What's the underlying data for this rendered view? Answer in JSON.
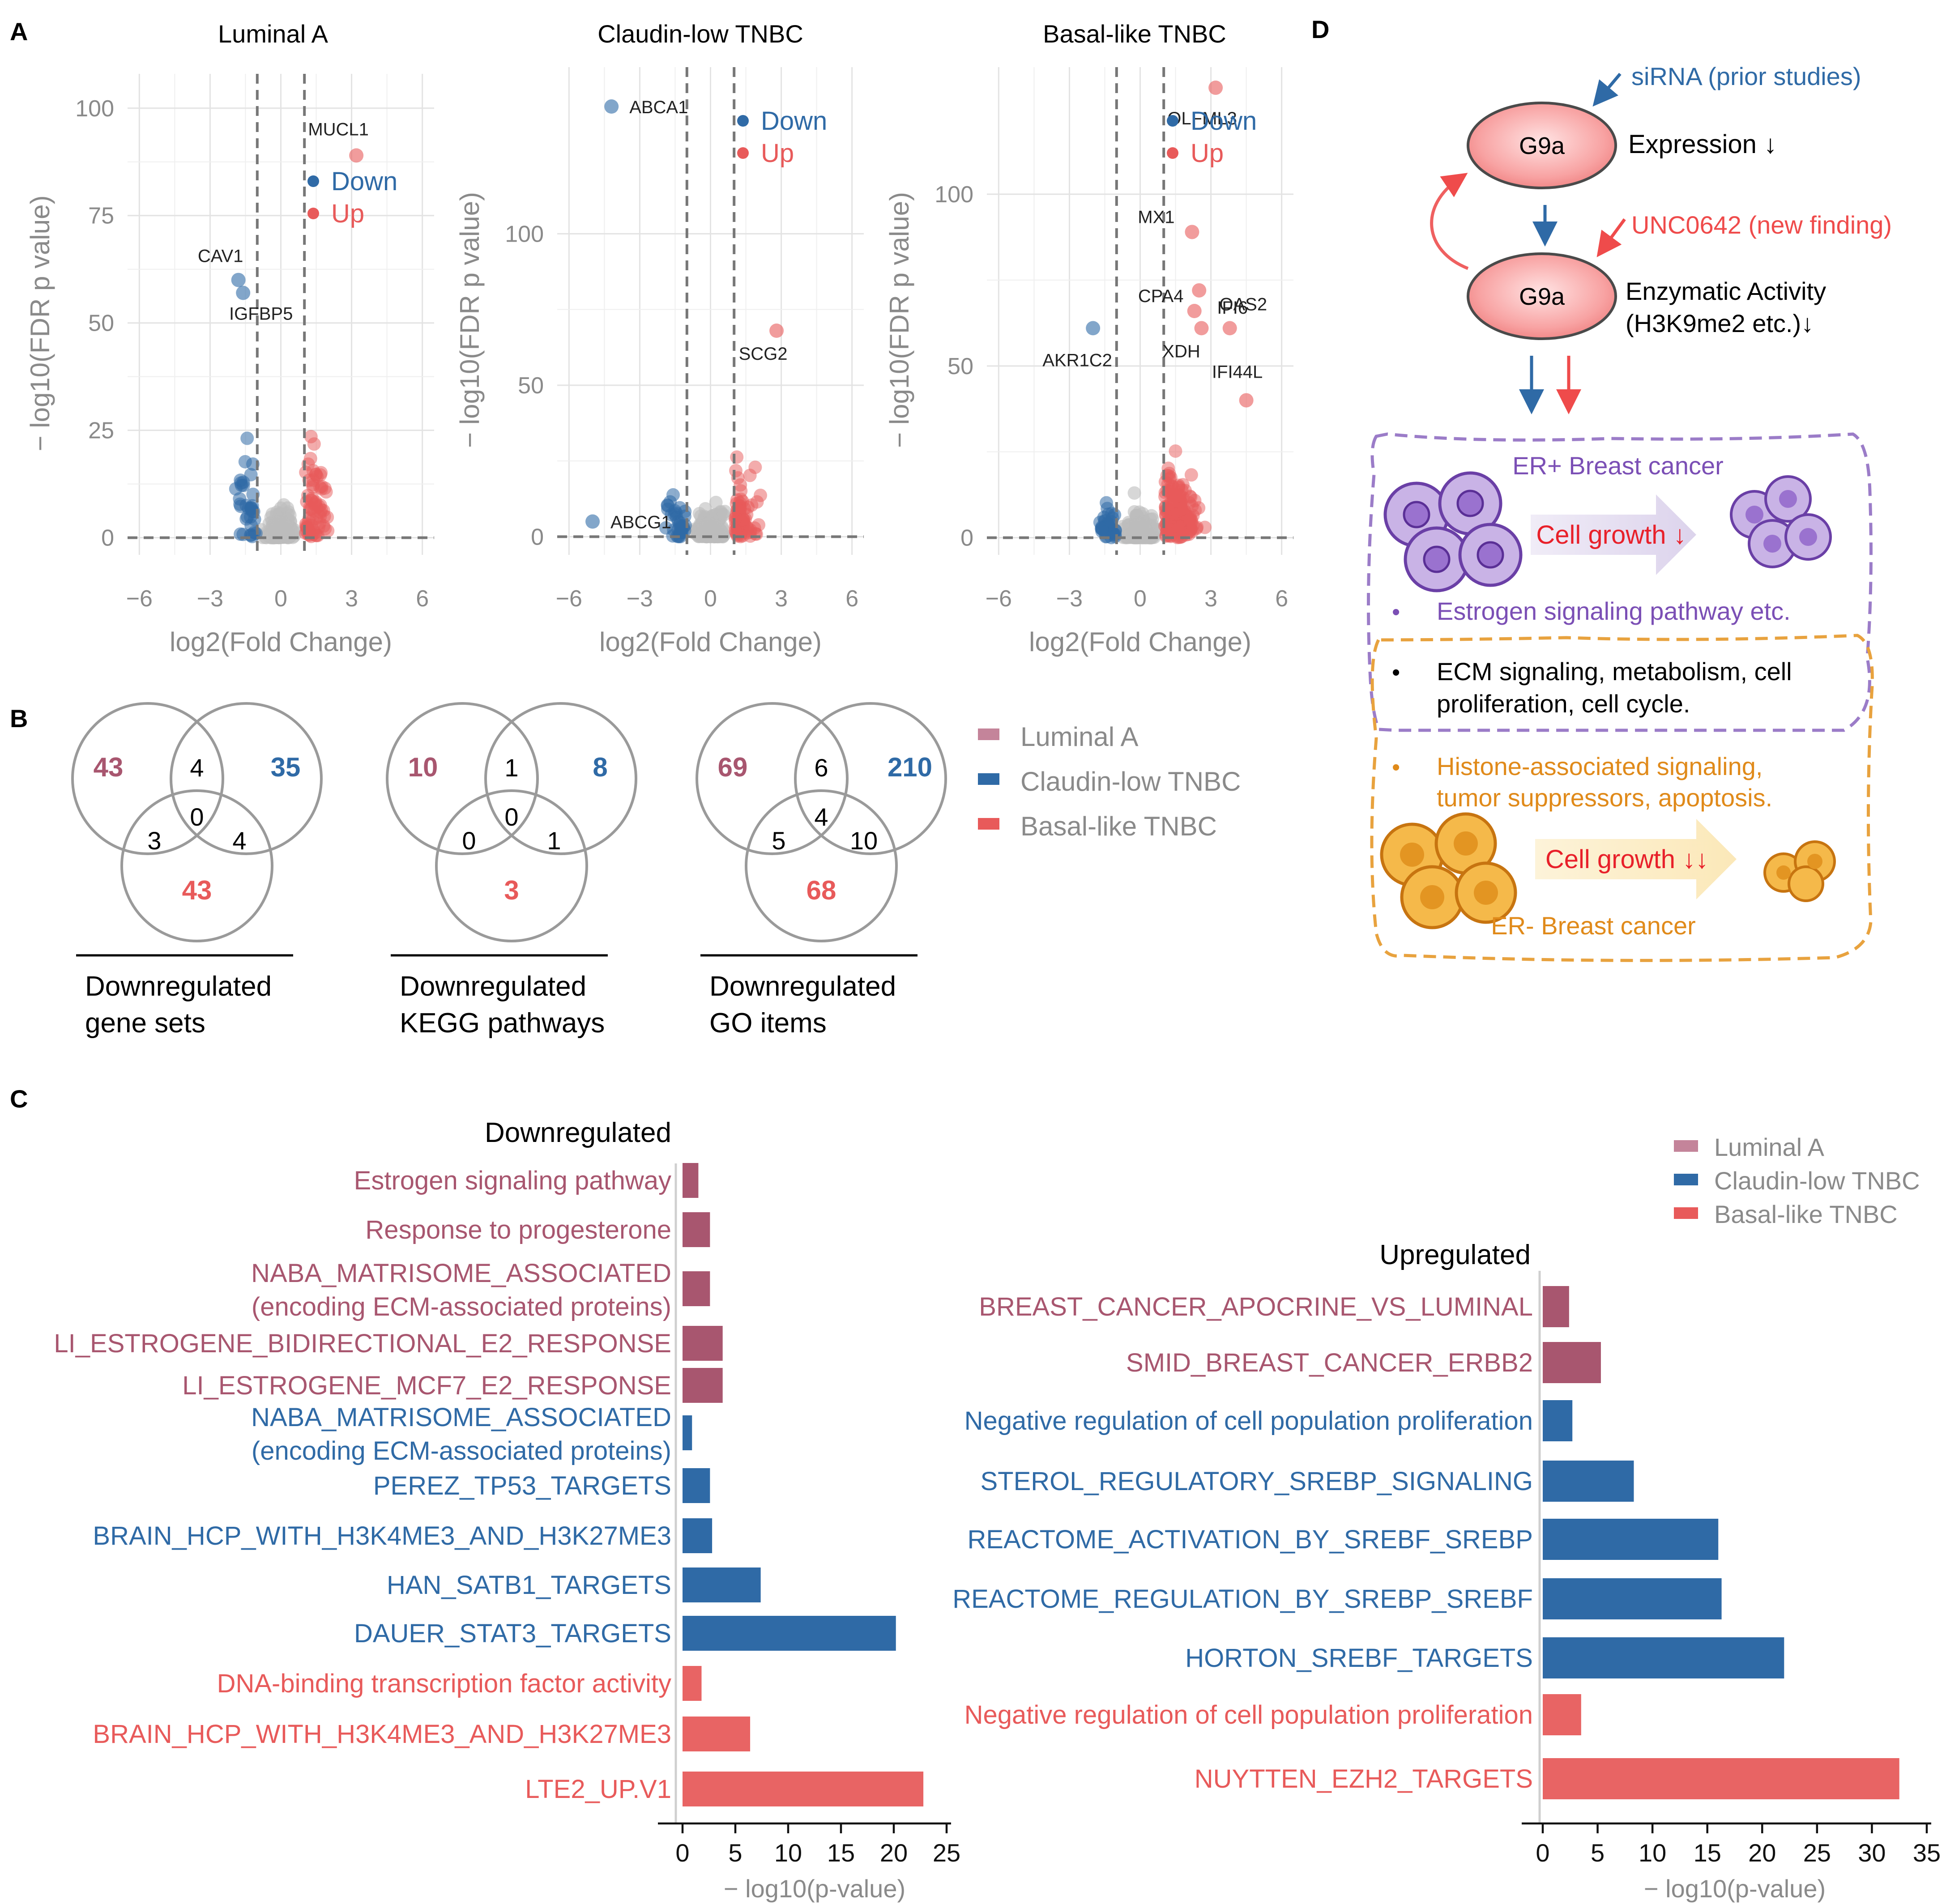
{
  "colors": {
    "luminal": "#a8566f",
    "claudin": "#2f6aa6",
    "basal": "#e85a5a",
    "down": "#2f6aa6",
    "up": "#e85a5a",
    "er_pos": "#7b4fb5",
    "er_neg": "#e08a1a",
    "grey_text": "#8a8a8a"
  },
  "panelA": {
    "label": "A",
    "x_label": "log2(Fold Change)",
    "y_label": "− log10(FDR p value)",
    "legend_down": "Down",
    "legend_up": "Up",
    "x_ticks": [
      "−6",
      "−3",
      "0",
      "3",
      "6"
    ],
    "charts": [
      {
        "type": "scatter",
        "title": "Luminal A",
        "xlim": [
          -6.5,
          6.5
        ],
        "ylim": [
          -4,
          108
        ],
        "y_ticks": [
          0,
          25,
          50,
          75,
          100
        ],
        "thresholds_x": [
          -1,
          1
        ],
        "threshold_y": 0,
        "labeled_points": [
          {
            "gene": "MUCL1",
            "x": 3.2,
            "y": 89,
            "dir": "up"
          },
          {
            "gene": "CAV1",
            "x": -1.8,
            "y": 60,
            "dir": "down"
          },
          {
            "gene": "IGFBP5",
            "x": -1.6,
            "y": 57,
            "dir": "down"
          }
        ]
      },
      {
        "type": "scatter",
        "title": "Claudin-low TNBC",
        "xlim": [
          -6.5,
          6.5
        ],
        "ylim": [
          -6,
          155
        ],
        "y_ticks": [
          0,
          50,
          100
        ],
        "thresholds_x": [
          -1,
          1
        ],
        "threshold_y": 0,
        "labeled_points": [
          {
            "gene": "ABCA1",
            "x": -4.2,
            "y": 142,
            "dir": "down"
          },
          {
            "gene": "SCG2",
            "x": 2.8,
            "y": 68,
            "dir": "up"
          },
          {
            "gene": "ABCG1",
            "x": -5.0,
            "y": 5,
            "dir": "down"
          }
        ]
      },
      {
        "type": "scatter",
        "title": "Basal-like TNBC",
        "xlim": [
          -6.5,
          6.5
        ],
        "ylim": [
          -5,
          137
        ],
        "y_ticks": [
          0,
          50,
          100
        ],
        "thresholds_x": [
          -1,
          1
        ],
        "threshold_y": 0,
        "labeled_points": [
          {
            "gene": "OLFML3",
            "x": 3.2,
            "y": 131,
            "dir": "up"
          },
          {
            "gene": "MX1",
            "x": 2.2,
            "y": 89,
            "dir": "up"
          },
          {
            "gene": "IFI6",
            "x": 2.5,
            "y": 72,
            "dir": "up"
          },
          {
            "gene": "OAS2",
            "x": 3.8,
            "y": 61,
            "dir": "up"
          },
          {
            "gene": "CPA4",
            "x": 2.3,
            "y": 66,
            "dir": "up"
          },
          {
            "gene": "AKR1C2",
            "x": -2.0,
            "y": 61,
            "dir": "down"
          },
          {
            "gene": "XDH",
            "x": 2.6,
            "y": 61,
            "dir": "up"
          },
          {
            "gene": "IFI44L",
            "x": 4.5,
            "y": 40,
            "dir": "up"
          }
        ]
      }
    ]
  },
  "panelB": {
    "label": "B",
    "legend": [
      "Luminal A",
      "Claudin-low TNBC",
      "Basal-like TNBC"
    ],
    "venns": [
      {
        "a": "43",
        "b": "35",
        "c": "43",
        "ab": "4",
        "ac": "3",
        "bc": "4",
        "abc": "0",
        "caption": [
          "Downregulated",
          "gene sets"
        ]
      },
      {
        "a": "10",
        "b": "8",
        "c": "3",
        "ab": "1",
        "ac": "0",
        "bc": "1",
        "abc": "0",
        "caption": [
          "Downregulated",
          "KEGG pathways"
        ]
      },
      {
        "a": "69",
        "b": "210",
        "c": "68",
        "ab": "6",
        "ac": "5",
        "bc": "10",
        "abc": "4",
        "caption": [
          "Downregulated",
          "GO items"
        ]
      }
    ]
  },
  "panelC": {
    "label": "C",
    "legend": [
      "Luminal A",
      "Claudin-low TNBC",
      "Basal-like TNBC"
    ],
    "xlabel": "− log10(p-value)",
    "chart_data": [
      {
        "type": "bar",
        "orientation": "horizontal",
        "title": "Downregulated",
        "xlabel": "− log10(p-value)",
        "xlim": [
          0,
          25
        ],
        "x_ticks": [
          0,
          5,
          10,
          15,
          20,
          25
        ],
        "bars": [
          {
            "label": [
              "Estrogen signaling pathway"
            ],
            "value": 1.5,
            "group": "luminal"
          },
          {
            "label": [
              "Response to progesterone"
            ],
            "value": 2.6,
            "group": "luminal"
          },
          {
            "label": [
              "NABA_MATRISOME_ASSOCIATED",
              "(encoding ECM-associated proteins)"
            ],
            "value": 2.6,
            "group": "luminal"
          },
          {
            "label": [
              "LI_ESTROGENE_BIDIRECTIONAL_E2_RESPONSE"
            ],
            "value": 3.8,
            "group": "luminal"
          },
          {
            "label": [
              "LI_ESTROGENE_MCF7_E2_RESPONSE"
            ],
            "value": 3.8,
            "group": "luminal"
          },
          {
            "label": [
              "NABA_MATRISOME_ASSOCIATED",
              "(encoding ECM-associated proteins)"
            ],
            "value": 0.9,
            "group": "claudin"
          },
          {
            "label": [
              "PEREZ_TP53_TARGETS"
            ],
            "value": 2.6,
            "group": "claudin"
          },
          {
            "label": [
              "BRAIN_HCP_WITH_H3K4ME3_AND_H3K27ME3"
            ],
            "value": 2.8,
            "group": "claudin"
          },
          {
            "label": [
              "HAN_SATB1_TARGETS"
            ],
            "value": 7.4,
            "group": "claudin"
          },
          {
            "label": [
              "DAUER_STAT3_TARGETS"
            ],
            "value": 20.2,
            "group": "claudin"
          },
          {
            "label": [
              "DNA-binding transcription factor activity"
            ],
            "value": 1.8,
            "group": "basal"
          },
          {
            "label": [
              "BRAIN_HCP_WITH_H3K4ME3_AND_H3K27ME3"
            ],
            "value": 6.4,
            "group": "basal"
          },
          {
            "label": [
              "LTE2_UP.V1"
            ],
            "value": 22.8,
            "group": "basal"
          }
        ]
      },
      {
        "type": "bar",
        "orientation": "horizontal",
        "title": "Upregulated",
        "xlabel": "− log10(p-value)",
        "xlim": [
          0,
          35
        ],
        "x_ticks": [
          0,
          5,
          10,
          15,
          20,
          25,
          30,
          35
        ],
        "bars": [
          {
            "label": [
              "BREAST_CANCER_APOCRINE_VS_LUMINAL"
            ],
            "value": 2.4,
            "group": "luminal"
          },
          {
            "label": [
              "SMID_BREAST_CANCER_ERBB2"
            ],
            "value": 5.3,
            "group": "luminal"
          },
          {
            "label": [
              "Negative regulation of cell population proliferation"
            ],
            "value": 2.7,
            "group": "claudin"
          },
          {
            "label": [
              "STEROL_REGULATORY_SREBP_SIGNALING"
            ],
            "value": 8.3,
            "group": "claudin"
          },
          {
            "label": [
              "REACTOME_ACTIVATION_BY_SREBF_SREBP"
            ],
            "value": 16.0,
            "group": "claudin"
          },
          {
            "label": [
              "REACTOME_REGULATION_BY_SREBP_SREBF"
            ],
            "value": 16.3,
            "group": "claudin"
          },
          {
            "label": [
              "HORTON_SREBF_TARGETS"
            ],
            "value": 22.0,
            "group": "claudin"
          },
          {
            "label": [
              "Negative regulation of cell population proliferation"
            ],
            "value": 3.5,
            "group": "basal"
          },
          {
            "label": [
              "NUYTTEN_EZH2_TARGETS"
            ],
            "value": 32.5,
            "group": "basal"
          }
        ]
      }
    ]
  },
  "panelD": {
    "label": "D",
    "g9a_label": "G9a",
    "sirna": "siRNA (prior studies)",
    "expression": "Expression ↓",
    "unc": "UNC0642 (new finding)",
    "activity_1": "Enzymatic Activity",
    "activity_2": "(H3K9me2 etc.)↓",
    "er_pos_title": "ER+ Breast cancer",
    "growth_1": "Cell growth ↓",
    "bullet_1": "Estrogen signaling pathway etc.",
    "bullet_2a": "ECM signaling, metabolism, cell",
    "bullet_2b": "proliferation, cell cycle.",
    "bullet_3a": "Histone-associated signaling,",
    "bullet_3b": "tumor suppressors, apoptosis.",
    "growth_2": "Cell growth ↓↓",
    "er_neg_title": "ER- Breast cancer",
    "bullet_char": "•"
  }
}
